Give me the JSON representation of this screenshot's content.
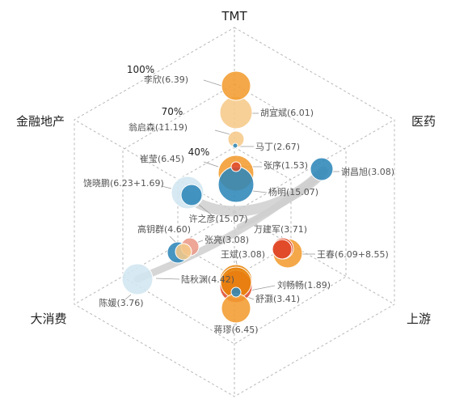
{
  "chart_data": {
    "type": "bubble-radar",
    "axes": [
      "TMT",
      "医药",
      "上游",
      "大消费",
      "金融地产"
    ],
    "rings": [
      "100%",
      "70%",
      "40%"
    ],
    "colors": {
      "light_orange": "#F6C98A",
      "orange": "#F39C30",
      "dark_orange": "#E8850C",
      "blue": "#2E86B8",
      "light_blue": "#D2E6F0",
      "red": "#E04A2A",
      "salmon": "#EC9A88",
      "flow": "#CFCFCF"
    },
    "nodes": [
      {
        "label": "李欣(6.39)",
        "value": 6.39
      },
      {
        "label": "胡宜斌(6.01)",
        "value": 6.01
      },
      {
        "label": "翁启森(11.19)",
        "value": 11.19
      },
      {
        "label": "马丁(2.67)",
        "value": 2.67
      },
      {
        "label": "崔莹(6.45)",
        "value": 6.45
      },
      {
        "label": "张序(1.53)",
        "value": 1.53
      },
      {
        "label": "饶晓鹏(6.23+1.69)",
        "value": 7.92
      },
      {
        "label": "杨明(15.07)",
        "value": 15.07
      },
      {
        "label": "许之彦(15.07)",
        "value": 15.07
      },
      {
        "label": "谢昌旭(3.08)",
        "value": 3.08
      },
      {
        "label": "高钥群(4.60)",
        "value": 4.6
      },
      {
        "label": "张亮(3.08)",
        "value": 3.08
      },
      {
        "label": "万建军(3.71)",
        "value": 3.71
      },
      {
        "label": "王春(6.09+8.55)",
        "value": 14.64
      },
      {
        "label": "王斌(3.08)",
        "value": 3.08
      },
      {
        "label": "陆秋渊(4.42)",
        "value": 4.42
      },
      {
        "label": "刘畅畅(1.89)",
        "value": 1.89
      },
      {
        "label": "舒灏(3.41)",
        "value": 3.41
      },
      {
        "label": "陈媛(3.76)",
        "value": 3.76
      },
      {
        "label": "蒋璆(6.45)",
        "value": 6.45
      }
    ]
  }
}
